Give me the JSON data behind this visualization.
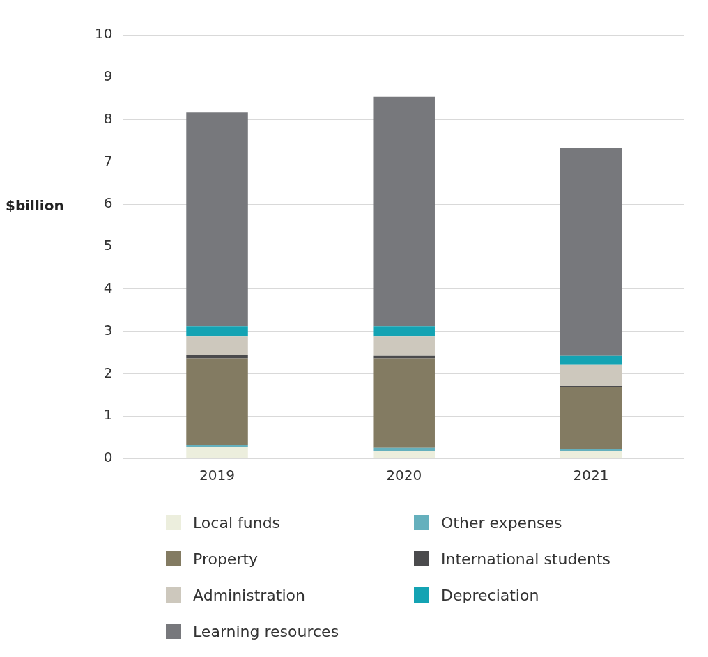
{
  "chart_data": {
    "type": "bar",
    "stacked": true,
    "ylabel": "$billion",
    "categories": [
      "2019",
      "2020",
      "2021"
    ],
    "series": [
      {
        "name": "Local funds",
        "color": "#eceedd",
        "values": [
          0.28,
          0.18,
          0.17
        ]
      },
      {
        "name": "Other expenses",
        "color": "#65b0bd",
        "values": [
          0.05,
          0.07,
          0.05
        ]
      },
      {
        "name": "Property",
        "color": "#837b62",
        "values": [
          2.03,
          2.11,
          1.47
        ]
      },
      {
        "name": "International students",
        "color": "#4b4b4d",
        "values": [
          0.08,
          0.06,
          0.02
        ]
      },
      {
        "name": "Administration",
        "color": "#cdc8bd",
        "values": [
          0.45,
          0.47,
          0.5
        ]
      },
      {
        "name": "Depreciation",
        "color": "#14a3b3",
        "values": [
          0.23,
          0.23,
          0.21
        ]
      },
      {
        "name": "Learning resources",
        "color": "#77787c",
        "values": [
          5.05,
          5.42,
          4.91
        ]
      }
    ],
    "ylim": [
      0,
      10
    ],
    "yticks": [
      0,
      1,
      2,
      3,
      4,
      5,
      6,
      7,
      8,
      9,
      10
    ],
    "grid": "y",
    "legend": "bottom"
  }
}
